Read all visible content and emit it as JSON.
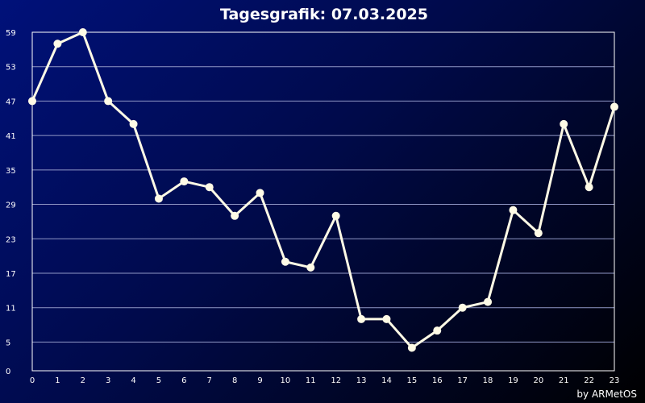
{
  "chart_data": {
    "type": "line",
    "title": "Tagesgrafik: 07.03.2025",
    "credit": "by ARMetOS",
    "xlabel": "",
    "ylabel": "",
    "x": [
      0,
      1,
      2,
      3,
      4,
      5,
      6,
      7,
      8,
      9,
      10,
      11,
      12,
      13,
      14,
      15,
      16,
      17,
      18,
      19,
      20,
      21,
      22,
      23
    ],
    "x_tick_labels": [
      "0",
      "1",
      "2",
      "3",
      "4",
      "5",
      "6",
      "7",
      "8",
      "9",
      "10",
      "11",
      "12",
      "13",
      "14",
      "15",
      "16",
      "17",
      "18",
      "19",
      "20",
      "21",
      "22",
      "23"
    ],
    "y_tick_labels": [
      "0",
      "5",
      "11",
      "17",
      "23",
      "29",
      "35",
      "41",
      "47",
      "53",
      "59"
    ],
    "ylim": [
      0,
      59
    ],
    "grid": true,
    "series": [
      {
        "values": [
          47,
          57,
          59,
          47,
          43,
          30,
          33,
          32,
          27,
          31,
          19,
          18,
          27,
          9,
          9,
          4,
          7,
          11,
          12,
          28,
          24,
          43,
          32,
          46
        ]
      }
    ],
    "colors": {
      "background_start": "#00117a",
      "background_end": "#000000",
      "line": "#fffbe6",
      "grid": "#8f97c6"
    }
  }
}
